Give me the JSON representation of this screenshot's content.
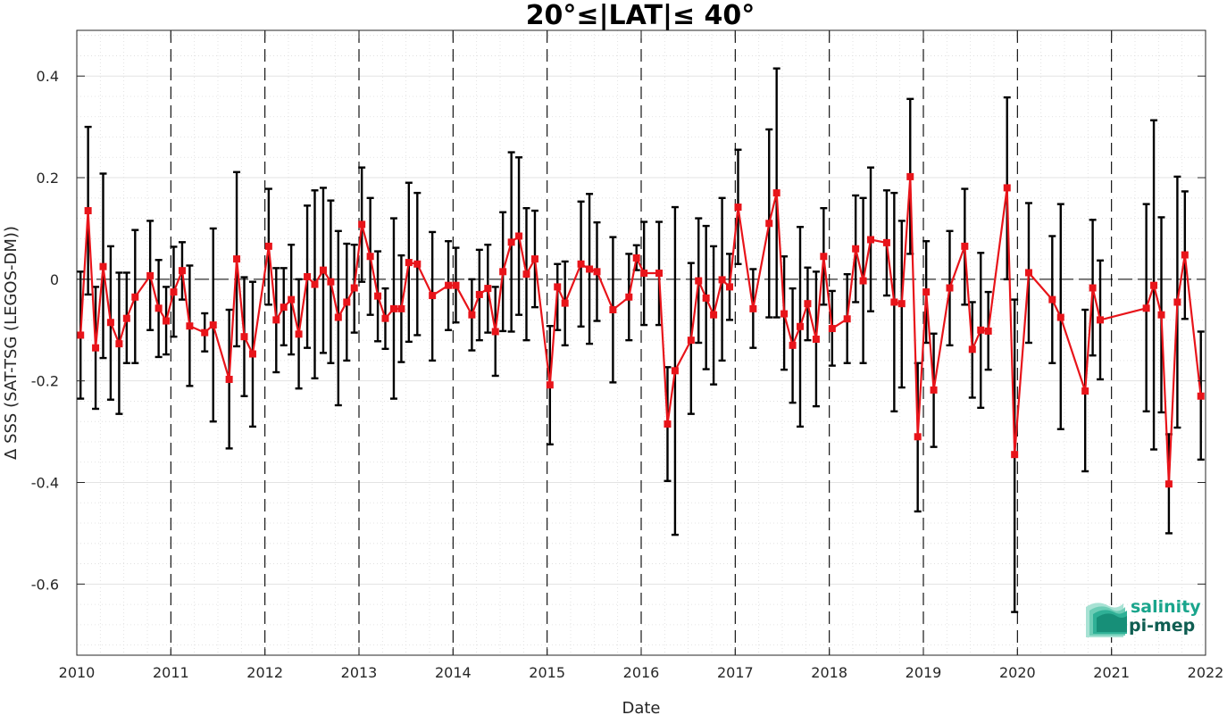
{
  "chart_data": {
    "type": "line",
    "title": "20°≤|LAT|≤ 40°",
    "xlabel": "Date",
    "ylabel": "Δ SSS (SAT-TSG (LEGOS-DM))",
    "xlim": [
      2010,
      2022
    ],
    "ylim": [
      -0.74,
      0.49
    ],
    "x_ticks": [
      "2010",
      "2011",
      "2012",
      "2013",
      "2014",
      "2015",
      "2016",
      "2017",
      "2018",
      "2019",
      "2020",
      "2021",
      "2022"
    ],
    "y_ticks": [
      "0.4",
      "0.2",
      "0",
      "-0.2",
      "-0.4",
      "-0.6"
    ],
    "grid": true,
    "minor_grid": true,
    "year_dashed_lines": true,
    "zero_dashed_line": true,
    "series": [
      {
        "color": "#e8141a",
        "marker": "square",
        "error_bar_color": "#000000",
        "points": [
          {
            "x": 2010.04,
            "y": -0.11,
            "lo": -0.235,
            "hi": 0.015
          },
          {
            "x": 2010.12,
            "y": 0.135,
            "lo": -0.03,
            "hi": 0.3
          },
          {
            "x": 2010.2,
            "y": -0.135,
            "lo": -0.255,
            "hi": -0.015
          },
          {
            "x": 2010.28,
            "y": 0.025,
            "lo": -0.155,
            "hi": 0.208
          },
          {
            "x": 2010.36,
            "y": -0.085,
            "lo": -0.237,
            "hi": 0.065
          },
          {
            "x": 2010.45,
            "y": -0.127,
            "lo": -0.265,
            "hi": 0.013
          },
          {
            "x": 2010.53,
            "y": -0.077,
            "lo": -0.165,
            "hi": 0.013
          },
          {
            "x": 2010.62,
            "y": -0.035,
            "lo": -0.165,
            "hi": 0.097
          },
          {
            "x": 2010.78,
            "y": 0.007,
            "lo": -0.1,
            "hi": 0.115
          },
          {
            "x": 2010.87,
            "y": -0.057,
            "lo": -0.153,
            "hi": 0.038
          },
          {
            "x": 2010.95,
            "y": -0.082,
            "lo": -0.148,
            "hi": -0.015
          },
          {
            "x": 2011.03,
            "y": -0.025,
            "lo": -0.113,
            "hi": 0.064
          },
          {
            "x": 2011.12,
            "y": 0.017,
            "lo": -0.04,
            "hi": 0.073
          },
          {
            "x": 2011.2,
            "y": -0.092,
            "lo": -0.21,
            "hi": 0.027
          },
          {
            "x": 2011.36,
            "y": -0.105,
            "lo": -0.142,
            "hi": -0.067
          },
          {
            "x": 2011.45,
            "y": -0.09,
            "lo": -0.28,
            "hi": 0.1
          },
          {
            "x": 2011.62,
            "y": -0.197,
            "lo": -0.333,
            "hi": -0.06
          },
          {
            "x": 2011.7,
            "y": 0.04,
            "lo": -0.132,
            "hi": 0.211
          },
          {
            "x": 2011.78,
            "y": -0.113,
            "lo": -0.23,
            "hi": 0.004
          },
          {
            "x": 2011.87,
            "y": -0.147,
            "lo": -0.29,
            "hi": -0.005
          },
          {
            "x": 2012.04,
            "y": 0.065,
            "lo": -0.05,
            "hi": 0.178
          },
          {
            "x": 2012.12,
            "y": -0.08,
            "lo": -0.183,
            "hi": 0.022
          },
          {
            "x": 2012.2,
            "y": -0.055,
            "lo": -0.13,
            "hi": 0.022
          },
          {
            "x": 2012.28,
            "y": -0.04,
            "lo": -0.148,
            "hi": 0.068
          },
          {
            "x": 2012.36,
            "y": -0.108,
            "lo": -0.215,
            "hi": 0.0
          },
          {
            "x": 2012.45,
            "y": 0.005,
            "lo": -0.135,
            "hi": 0.145
          },
          {
            "x": 2012.53,
            "y": -0.01,
            "lo": -0.195,
            "hi": 0.175
          },
          {
            "x": 2012.62,
            "y": 0.018,
            "lo": -0.145,
            "hi": 0.18
          },
          {
            "x": 2012.7,
            "y": -0.005,
            "lo": -0.165,
            "hi": 0.155
          },
          {
            "x": 2012.78,
            "y": -0.075,
            "lo": -0.248,
            "hi": 0.095
          },
          {
            "x": 2012.87,
            "y": -0.045,
            "lo": -0.16,
            "hi": 0.07
          },
          {
            "x": 2012.95,
            "y": -0.017,
            "lo": -0.105,
            "hi": 0.068
          },
          {
            "x": 2013.03,
            "y": 0.108,
            "lo": -0.005,
            "hi": 0.22
          },
          {
            "x": 2013.12,
            "y": 0.045,
            "lo": -0.07,
            "hi": 0.16
          },
          {
            "x": 2013.2,
            "y": -0.033,
            "lo": -0.122,
            "hi": 0.055
          },
          {
            "x": 2013.28,
            "y": -0.077,
            "lo": -0.137,
            "hi": -0.018
          },
          {
            "x": 2013.37,
            "y": -0.058,
            "lo": -0.235,
            "hi": 0.12
          },
          {
            "x": 2013.45,
            "y": -0.058,
            "lo": -0.163,
            "hi": 0.047
          },
          {
            "x": 2013.53,
            "y": 0.033,
            "lo": -0.123,
            "hi": 0.19
          },
          {
            "x": 2013.62,
            "y": 0.03,
            "lo": -0.11,
            "hi": 0.17
          },
          {
            "x": 2013.78,
            "y": -0.032,
            "lo": -0.16,
            "hi": 0.093
          },
          {
            "x": 2013.95,
            "y": -0.012,
            "lo": -0.1,
            "hi": 0.075
          },
          {
            "x": 2014.03,
            "y": -0.012,
            "lo": -0.085,
            "hi": 0.062
          },
          {
            "x": 2014.2,
            "y": -0.07,
            "lo": -0.14,
            "hi": 0.0
          },
          {
            "x": 2014.28,
            "y": -0.03,
            "lo": -0.12,
            "hi": 0.058
          },
          {
            "x": 2014.37,
            "y": -0.018,
            "lo": -0.105,
            "hi": 0.068
          },
          {
            "x": 2014.45,
            "y": -0.103,
            "lo": -0.19,
            "hi": -0.015
          },
          {
            "x": 2014.53,
            "y": 0.015,
            "lo": -0.102,
            "hi": 0.132
          },
          {
            "x": 2014.62,
            "y": 0.073,
            "lo": -0.103,
            "hi": 0.25
          },
          {
            "x": 2014.7,
            "y": 0.085,
            "lo": -0.07,
            "hi": 0.24
          },
          {
            "x": 2014.78,
            "y": 0.01,
            "lo": -0.12,
            "hi": 0.14
          },
          {
            "x": 2014.87,
            "y": 0.04,
            "lo": -0.055,
            "hi": 0.135
          },
          {
            "x": 2015.03,
            "y": -0.208,
            "lo": -0.325,
            "hi": -0.092
          },
          {
            "x": 2015.11,
            "y": -0.015,
            "lo": -0.1,
            "hi": 0.03
          },
          {
            "x": 2015.19,
            "y": -0.047,
            "lo": -0.13,
            "hi": 0.035
          },
          {
            "x": 2015.36,
            "y": 0.03,
            "lo": -0.093,
            "hi": 0.153
          },
          {
            "x": 2015.45,
            "y": 0.02,
            "lo": -0.127,
            "hi": 0.168
          },
          {
            "x": 2015.53,
            "y": 0.015,
            "lo": -0.082,
            "hi": 0.112
          },
          {
            "x": 2015.7,
            "y": -0.06,
            "lo": -0.203,
            "hi": 0.083
          },
          {
            "x": 2015.87,
            "y": -0.035,
            "lo": -0.12,
            "hi": 0.05
          },
          {
            "x": 2015.95,
            "y": 0.042,
            "lo": 0.018,
            "hi": 0.067
          },
          {
            "x": 2016.03,
            "y": 0.012,
            "lo": -0.09,
            "hi": 0.113
          },
          {
            "x": 2016.19,
            "y": 0.012,
            "lo": -0.09,
            "hi": 0.113
          },
          {
            "x": 2016.28,
            "y": -0.285,
            "lo": -0.397,
            "hi": -0.173
          },
          {
            "x": 2016.36,
            "y": -0.18,
            "lo": -0.503,
            "hi": 0.142
          },
          {
            "x": 2016.53,
            "y": -0.12,
            "lo": -0.265,
            "hi": 0.032
          },
          {
            "x": 2016.61,
            "y": -0.003,
            "lo": -0.125,
            "hi": 0.12
          },
          {
            "x": 2016.69,
            "y": -0.037,
            "lo": -0.177,
            "hi": 0.105
          },
          {
            "x": 2016.77,
            "y": -0.07,
            "lo": -0.207,
            "hi": 0.065
          },
          {
            "x": 2016.86,
            "y": -0.001,
            "lo": -0.16,
            "hi": 0.16
          },
          {
            "x": 2016.94,
            "y": -0.015,
            "lo": -0.08,
            "hi": 0.05
          },
          {
            "x": 2017.03,
            "y": 0.142,
            "lo": 0.03,
            "hi": 0.255
          },
          {
            "x": 2017.19,
            "y": -0.058,
            "lo": -0.135,
            "hi": 0.02
          },
          {
            "x": 2017.36,
            "y": 0.11,
            "lo": -0.075,
            "hi": 0.295
          },
          {
            "x": 2017.44,
            "y": 0.17,
            "lo": -0.075,
            "hi": 0.415
          },
          {
            "x": 2017.52,
            "y": -0.068,
            "lo": -0.178,
            "hi": 0.045
          },
          {
            "x": 2017.61,
            "y": -0.13,
            "lo": -0.243,
            "hi": -0.018
          },
          {
            "x": 2017.69,
            "y": -0.093,
            "lo": -0.29,
            "hi": 0.103
          },
          {
            "x": 2017.77,
            "y": -0.048,
            "lo": -0.12,
            "hi": 0.023
          },
          {
            "x": 2017.86,
            "y": -0.118,
            "lo": -0.25,
            "hi": 0.015
          },
          {
            "x": 2017.94,
            "y": 0.045,
            "lo": -0.05,
            "hi": 0.14
          },
          {
            "x": 2018.03,
            "y": -0.097,
            "lo": -0.17,
            "hi": -0.023
          },
          {
            "x": 2018.19,
            "y": -0.078,
            "lo": -0.165,
            "hi": 0.01
          },
          {
            "x": 2018.28,
            "y": 0.06,
            "lo": -0.045,
            "hi": 0.165
          },
          {
            "x": 2018.36,
            "y": -0.003,
            "lo": -0.165,
            "hi": 0.16
          },
          {
            "x": 2018.44,
            "y": 0.078,
            "lo": -0.063,
            "hi": 0.22
          },
          {
            "x": 2018.61,
            "y": 0.072,
            "lo": -0.032,
            "hi": 0.175
          },
          {
            "x": 2018.69,
            "y": -0.045,
            "lo": -0.26,
            "hi": 0.17
          },
          {
            "x": 2018.77,
            "y": -0.048,
            "lo": -0.213,
            "hi": 0.115
          },
          {
            "x": 2018.86,
            "y": 0.202,
            "lo": 0.05,
            "hi": 0.355
          },
          {
            "x": 2018.94,
            "y": -0.31,
            "lo": -0.457,
            "hi": -0.165
          },
          {
            "x": 2019.03,
            "y": -0.025,
            "lo": -0.125,
            "hi": 0.075
          },
          {
            "x": 2019.11,
            "y": -0.218,
            "lo": -0.33,
            "hi": -0.107
          },
          {
            "x": 2019.28,
            "y": -0.017,
            "lo": -0.13,
            "hi": 0.095
          },
          {
            "x": 2019.44,
            "y": 0.065,
            "lo": -0.05,
            "hi": 0.178
          },
          {
            "x": 2019.52,
            "y": -0.138,
            "lo": -0.233,
            "hi": -0.045
          },
          {
            "x": 2019.61,
            "y": -0.1,
            "lo": -0.253,
            "hi": 0.052
          },
          {
            "x": 2019.69,
            "y": -0.102,
            "lo": -0.178,
            "hi": -0.025
          },
          {
            "x": 2019.89,
            "y": 0.18,
            "lo": 0.0,
            "hi": 0.358
          },
          {
            "x": 2019.97,
            "y": -0.345,
            "lo": -0.655,
            "hi": -0.04
          },
          {
            "x": 2020.12,
            "y": 0.013,
            "lo": -0.125,
            "hi": 0.15
          },
          {
            "x": 2020.37,
            "y": -0.04,
            "lo": -0.165,
            "hi": 0.085
          },
          {
            "x": 2020.46,
            "y": -0.075,
            "lo": -0.295,
            "hi": 0.148
          },
          {
            "x": 2020.72,
            "y": -0.22,
            "lo": -0.378,
            "hi": -0.06
          },
          {
            "x": 2020.8,
            "y": -0.017,
            "lo": -0.15,
            "hi": 0.117
          },
          {
            "x": 2020.88,
            "y": -0.08,
            "lo": -0.197,
            "hi": 0.037
          },
          {
            "x": 2021.37,
            "y": -0.057,
            "lo": -0.26,
            "hi": 0.148
          },
          {
            "x": 2021.45,
            "y": -0.012,
            "lo": -0.335,
            "hi": 0.313
          },
          {
            "x": 2021.53,
            "y": -0.07,
            "lo": -0.262,
            "hi": 0.122
          },
          {
            "x": 2021.61,
            "y": -0.403,
            "lo": -0.5,
            "hi": -0.305
          },
          {
            "x": 2021.7,
            "y": -0.045,
            "lo": -0.292,
            "hi": 0.202
          },
          {
            "x": 2021.78,
            "y": 0.048,
            "lo": -0.078,
            "hi": 0.173
          },
          {
            "x": 2021.95,
            "y": -0.23,
            "lo": -0.355,
            "hi": -0.103
          }
        ]
      }
    ]
  },
  "logo": {
    "line1": "salinity",
    "line2": "pi-mep",
    "line1_color": "#1aa58c",
    "line2_color": "#0f5e52"
  }
}
